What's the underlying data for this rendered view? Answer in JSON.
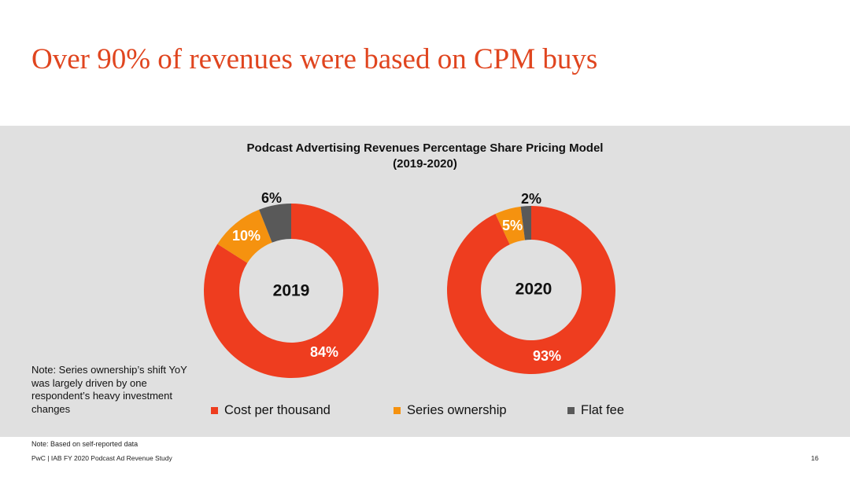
{
  "title": "Over 90% of revenues were based on CPM buys",
  "colors": {
    "accent": "#e0451f",
    "cpm": "#ee3d1f",
    "series": "#f5920f",
    "flat": "#595959",
    "panel": "#e0e0e0"
  },
  "chart_data": {
    "type": "pie",
    "variant": "donut",
    "title": "Podcast Advertising Revenues Percentage Share Pricing Model",
    "subtitle": "(2019-2020)",
    "categories": [
      "Cost per thousand",
      "Series ownership",
      "Flat fee"
    ],
    "charts": [
      {
        "label": "2019",
        "values": [
          84,
          10,
          6
        ],
        "value_labels": [
          "84%",
          "10%",
          "6%"
        ]
      },
      {
        "label": "2020",
        "values": [
          93,
          5,
          2
        ],
        "value_labels": [
          "93%",
          "5%",
          "2%"
        ]
      }
    ],
    "legend_position": "bottom"
  },
  "note_left": "Note: Series ownership’s shift YoY was largely driven by one respondent’s heavy investment changes",
  "footnote": "Note: Based on self-reported data",
  "footer": {
    "source": "PwC  |  IAB FY 2020 Podcast Ad Revenue Study",
    "page": "16"
  }
}
